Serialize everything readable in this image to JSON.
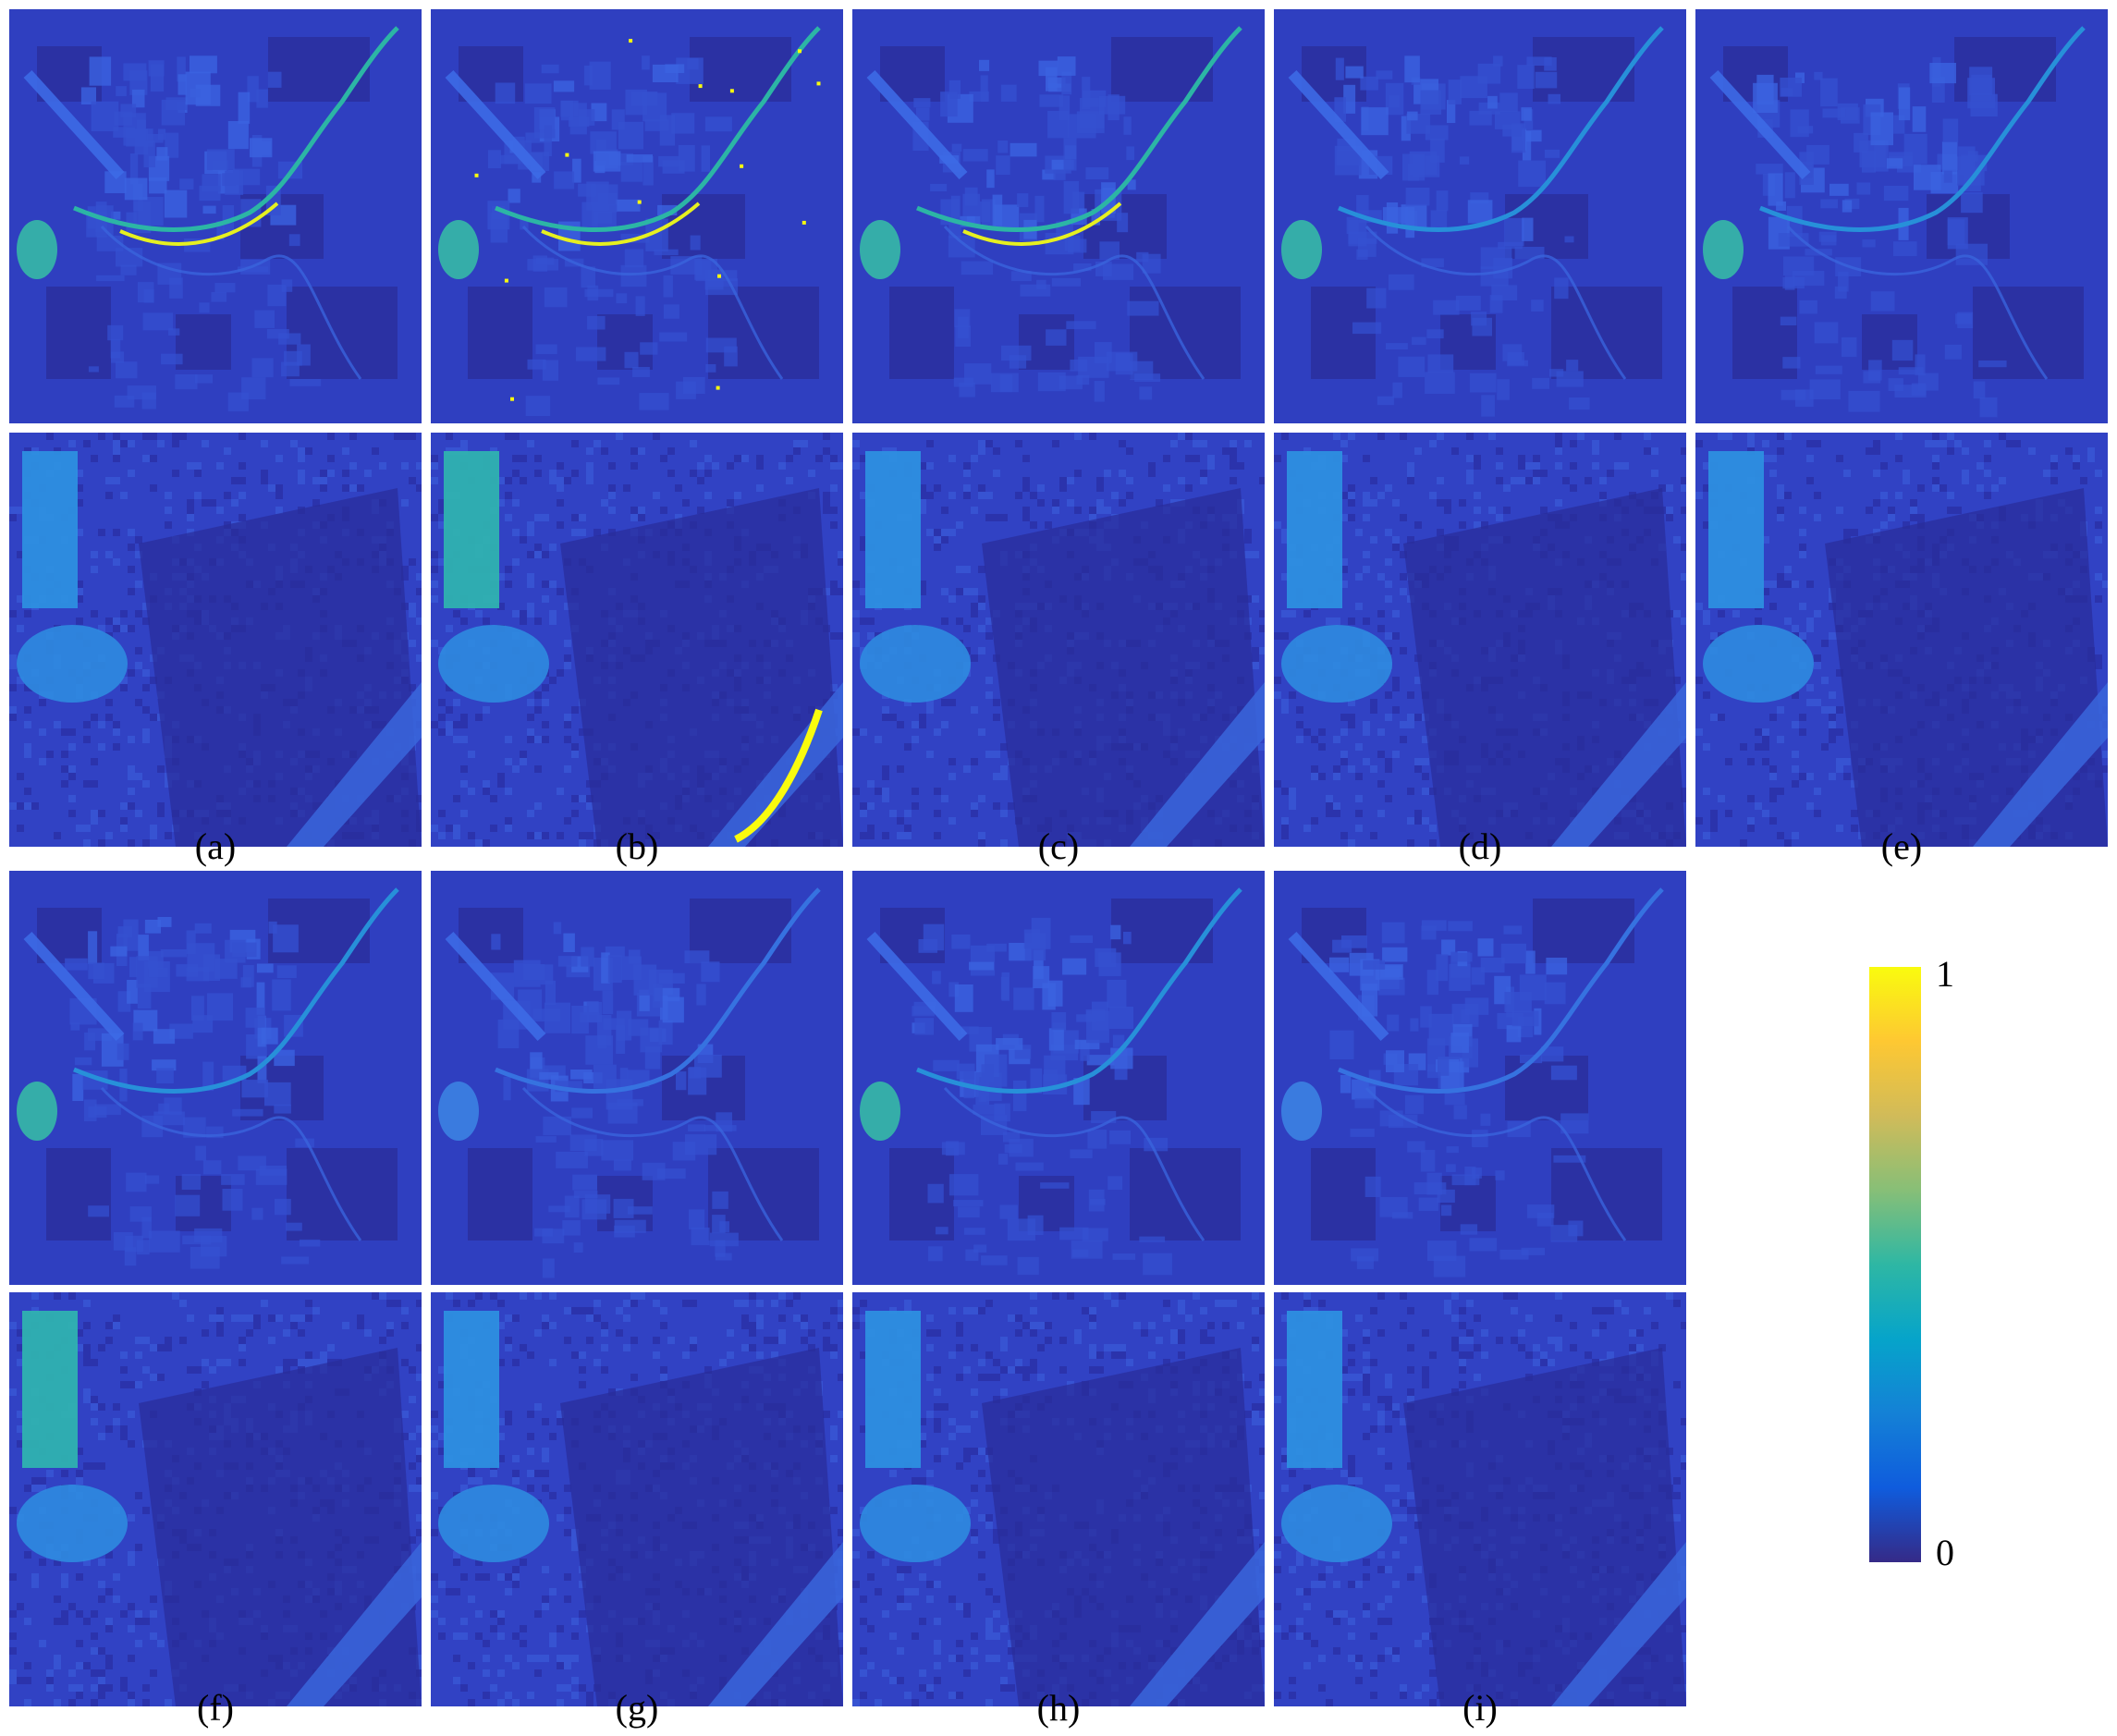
{
  "figure": {
    "captions": [
      "(a)",
      "(b)",
      "(c)",
      "(d)",
      "(e)",
      "(f)",
      "(g)",
      "(h)",
      "(i)"
    ],
    "colorbar": {
      "max_label": "1",
      "min_label": "0",
      "colormap": "parula",
      "stops": [
        "#352a87",
        "#0f5cdd",
        "#1481d6",
        "#06a4ca",
        "#2eb7a4",
        "#87bf77",
        "#d1bb59",
        "#fec832",
        "#f9fb0e"
      ]
    },
    "panels": [
      {
        "label": "a",
        "view": "full",
        "hot": 2
      },
      {
        "label": "a",
        "view": "zoom",
        "hot": 1
      },
      {
        "label": "b",
        "view": "full",
        "hot": 3
      },
      {
        "label": "b",
        "view": "zoom",
        "hot": 3
      },
      {
        "label": "c",
        "view": "full",
        "hot": 2
      },
      {
        "label": "c",
        "view": "zoom",
        "hot": 1
      },
      {
        "label": "d",
        "view": "full",
        "hot": 1
      },
      {
        "label": "d",
        "view": "zoom",
        "hot": 1
      },
      {
        "label": "e",
        "view": "full",
        "hot": 1
      },
      {
        "label": "e",
        "view": "zoom",
        "hot": 1
      },
      {
        "label": "f",
        "view": "full",
        "hot": 1
      },
      {
        "label": "f",
        "view": "zoom",
        "hot": 2
      },
      {
        "label": "g",
        "view": "full",
        "hot": 0
      },
      {
        "label": "g",
        "view": "zoom",
        "hot": 0
      },
      {
        "label": "h",
        "view": "full",
        "hot": 1
      },
      {
        "label": "h",
        "view": "zoom",
        "hot": 0
      },
      {
        "label": "i",
        "view": "full",
        "hot": 0
      },
      {
        "label": "i",
        "view": "zoom",
        "hot": 0
      }
    ]
  }
}
